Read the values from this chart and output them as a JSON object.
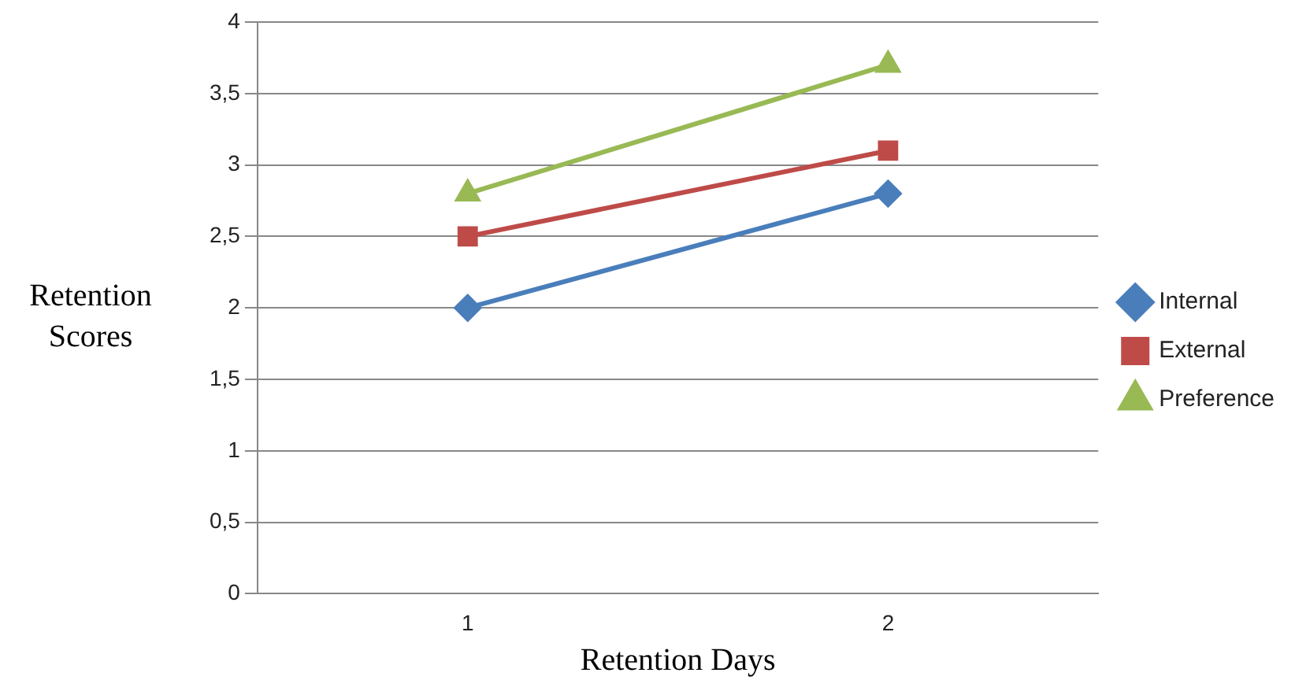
{
  "chart_data": {
    "type": "line",
    "xlabel": "Retention Days",
    "ylabel": "Retention Scores",
    "categories": [
      "1",
      "2"
    ],
    "series": [
      {
        "name": "Internal",
        "color": "#4a7ebb",
        "marker": "diamond",
        "values": [
          2,
          2.8
        ]
      },
      {
        "name": "External",
        "color": "#be4b48",
        "marker": "square",
        "values": [
          2.5,
          3.1
        ]
      },
      {
        "name": "Preference",
        "color": "#98b954",
        "marker": "triangle",
        "values": [
          2.8,
          3.7
        ]
      }
    ],
    "ylim": [
      0,
      4
    ],
    "yticks": [
      0,
      {
        "value": 0.5,
        "label": "0,5"
      },
      1,
      {
        "value": 1.5,
        "label": "1,5"
      },
      2,
      {
        "value": 2.5,
        "label": "2,5"
      },
      3,
      {
        "value": 3.5,
        "label": "3,5"
      },
      4
    ],
    "grid": "y",
    "legend": "right"
  }
}
